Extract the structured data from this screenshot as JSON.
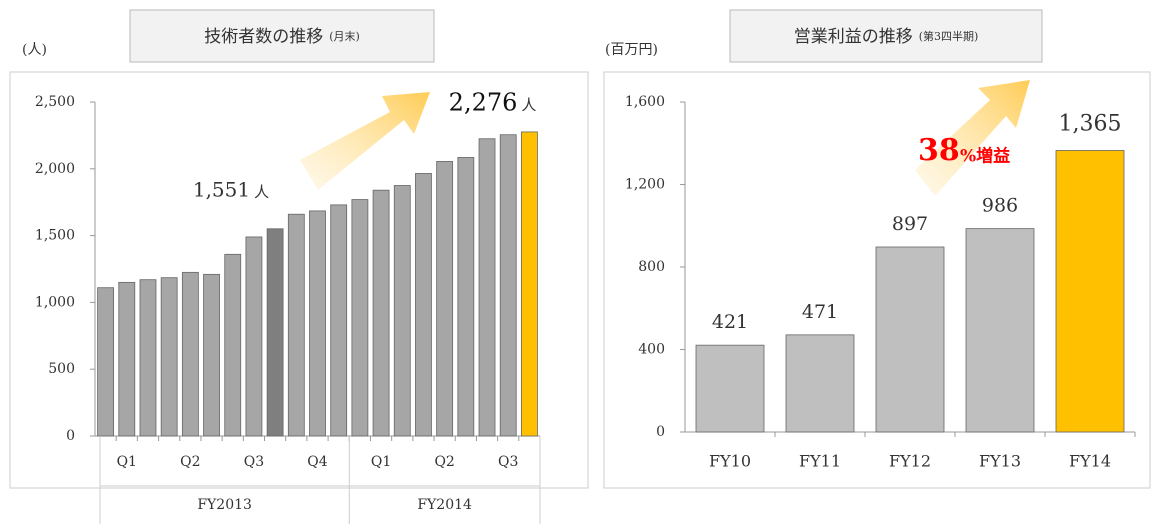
{
  "chart_data": [
    {
      "type": "bar",
      "title": "技術者数の推移",
      "subtitle": "(月末)",
      "y_unit": "(人)",
      "categories": [
        null,
        null,
        null,
        null,
        null,
        null,
        null,
        null,
        null,
        null,
        null,
        null,
        null,
        null,
        null,
        null,
        null,
        null,
        null,
        null,
        null
      ],
      "quarter_labels": [
        "Q1",
        "Q2",
        "Q3",
        "Q4",
        "Q1",
        "Q2",
        "Q3"
      ],
      "fiscal_year_labels": [
        "FY2013",
        "FY2014"
      ],
      "series": [
        {
          "colors": [
            "#a6a6a6",
            "#a6a6a6",
            "#a6a6a6",
            "#a6a6a6",
            "#a6a6a6",
            "#a6a6a6",
            "#a6a6a6",
            "#a6a6a6",
            "#7f7f7f",
            "#a6a6a6",
            "#a6a6a6",
            "#a6a6a6",
            "#a6a6a6",
            "#a6a6a6",
            "#a6a6a6",
            "#a6a6a6",
            "#a6a6a6",
            "#a6a6a6",
            "#a6a6a6",
            "#a6a6a6",
            "#ffc000"
          ],
          "values": [
            1110,
            1150,
            1170,
            1185,
            1225,
            1210,
            1360,
            1490,
            1551,
            1660,
            1685,
            1730,
            1770,
            1840,
            1875,
            1965,
            2055,
            2085,
            2225,
            2255,
            2276
          ]
        }
      ],
      "annotations": [
        {
          "index": 8,
          "label": "1,551",
          "unit": "人"
        },
        {
          "index": 20,
          "label": "2,276",
          "unit": "人"
        }
      ],
      "ylim": [
        0,
        2500
      ],
      "yticks": [
        0,
        {
          "value": 500,
          "label": "500"
        },
        {
          "value": 1000,
          "label": "1,000"
        },
        {
          "value": 1500,
          "label": "1,500"
        },
        {
          "value": 2000,
          "label": "2,000"
        },
        {
          "value": 2500,
          "label": "2,500"
        }
      ]
    },
    {
      "type": "bar",
      "title": "営業利益の推移",
      "subtitle": "(第3四半期)",
      "y_unit": "(百万円)",
      "categories": [
        "FY10",
        "FY11",
        "FY12",
        "FY13",
        "FY14"
      ],
      "series": [
        {
          "colors": [
            "#bfbfbf",
            "#bfbfbf",
            "#bfbfbf",
            "#bfbfbf",
            "#ffc000"
          ],
          "values": [
            421,
            471,
            897,
            986,
            1365
          ],
          "value_labels": [
            "421",
            "471",
            "897",
            "986",
            "1,365"
          ]
        }
      ],
      "growth": {
        "number": "38",
        "suffix": "%増益"
      },
      "ylim": [
        0,
        1600
      ],
      "yticks": [
        0,
        {
          "value": 400,
          "label": "400"
        },
        {
          "value": 800,
          "label": "800"
        },
        {
          "value": 1200,
          "label": "1,200"
        },
        {
          "value": 1600,
          "label": "1,600"
        }
      ]
    }
  ]
}
